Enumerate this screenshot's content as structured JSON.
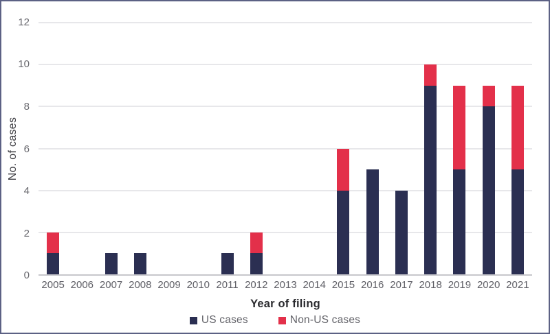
{
  "chart_data": {
    "type": "bar",
    "stacked": true,
    "title": "",
    "xlabel": "Year of filing",
    "ylabel": "No. of cases",
    "categories": [
      "2005",
      "2006",
      "2007",
      "2008",
      "2009",
      "2010",
      "2011",
      "2012",
      "2013",
      "2014",
      "2015",
      "2016",
      "2017",
      "2018",
      "2019",
      "2020",
      "2021"
    ],
    "series": [
      {
        "name": "US cases",
        "color": "#2b2f52",
        "values": [
          1,
          0,
          1,
          1,
          0,
          0,
          1,
          1,
          0,
          0,
          4,
          5,
          4,
          9,
          5,
          8,
          5
        ]
      },
      {
        "name": "Non-US cases",
        "color": "#e3304a",
        "values": [
          1,
          0,
          0,
          0,
          0,
          0,
          0,
          1,
          0,
          0,
          2,
          0,
          0,
          1,
          4,
          1,
          4
        ]
      }
    ],
    "totals": [
      2,
      0,
      1,
      1,
      0,
      0,
      1,
      2,
      0,
      0,
      6,
      5,
      4,
      10,
      9,
      9,
      9
    ],
    "ylim": [
      0,
      12
    ],
    "yticks": [
      0,
      2,
      4,
      6,
      8,
      10,
      12
    ],
    "grid": "horizontal",
    "legend_position": "bottom-center"
  },
  "ui_colors": {
    "frame_border": "#5c6184",
    "gridline": "#e7e7ea",
    "axis_line": "#c6c6cb",
    "tick_text": "#68686e",
    "axis_title_text": "#2a2a2e",
    "background": "#ffffff"
  }
}
